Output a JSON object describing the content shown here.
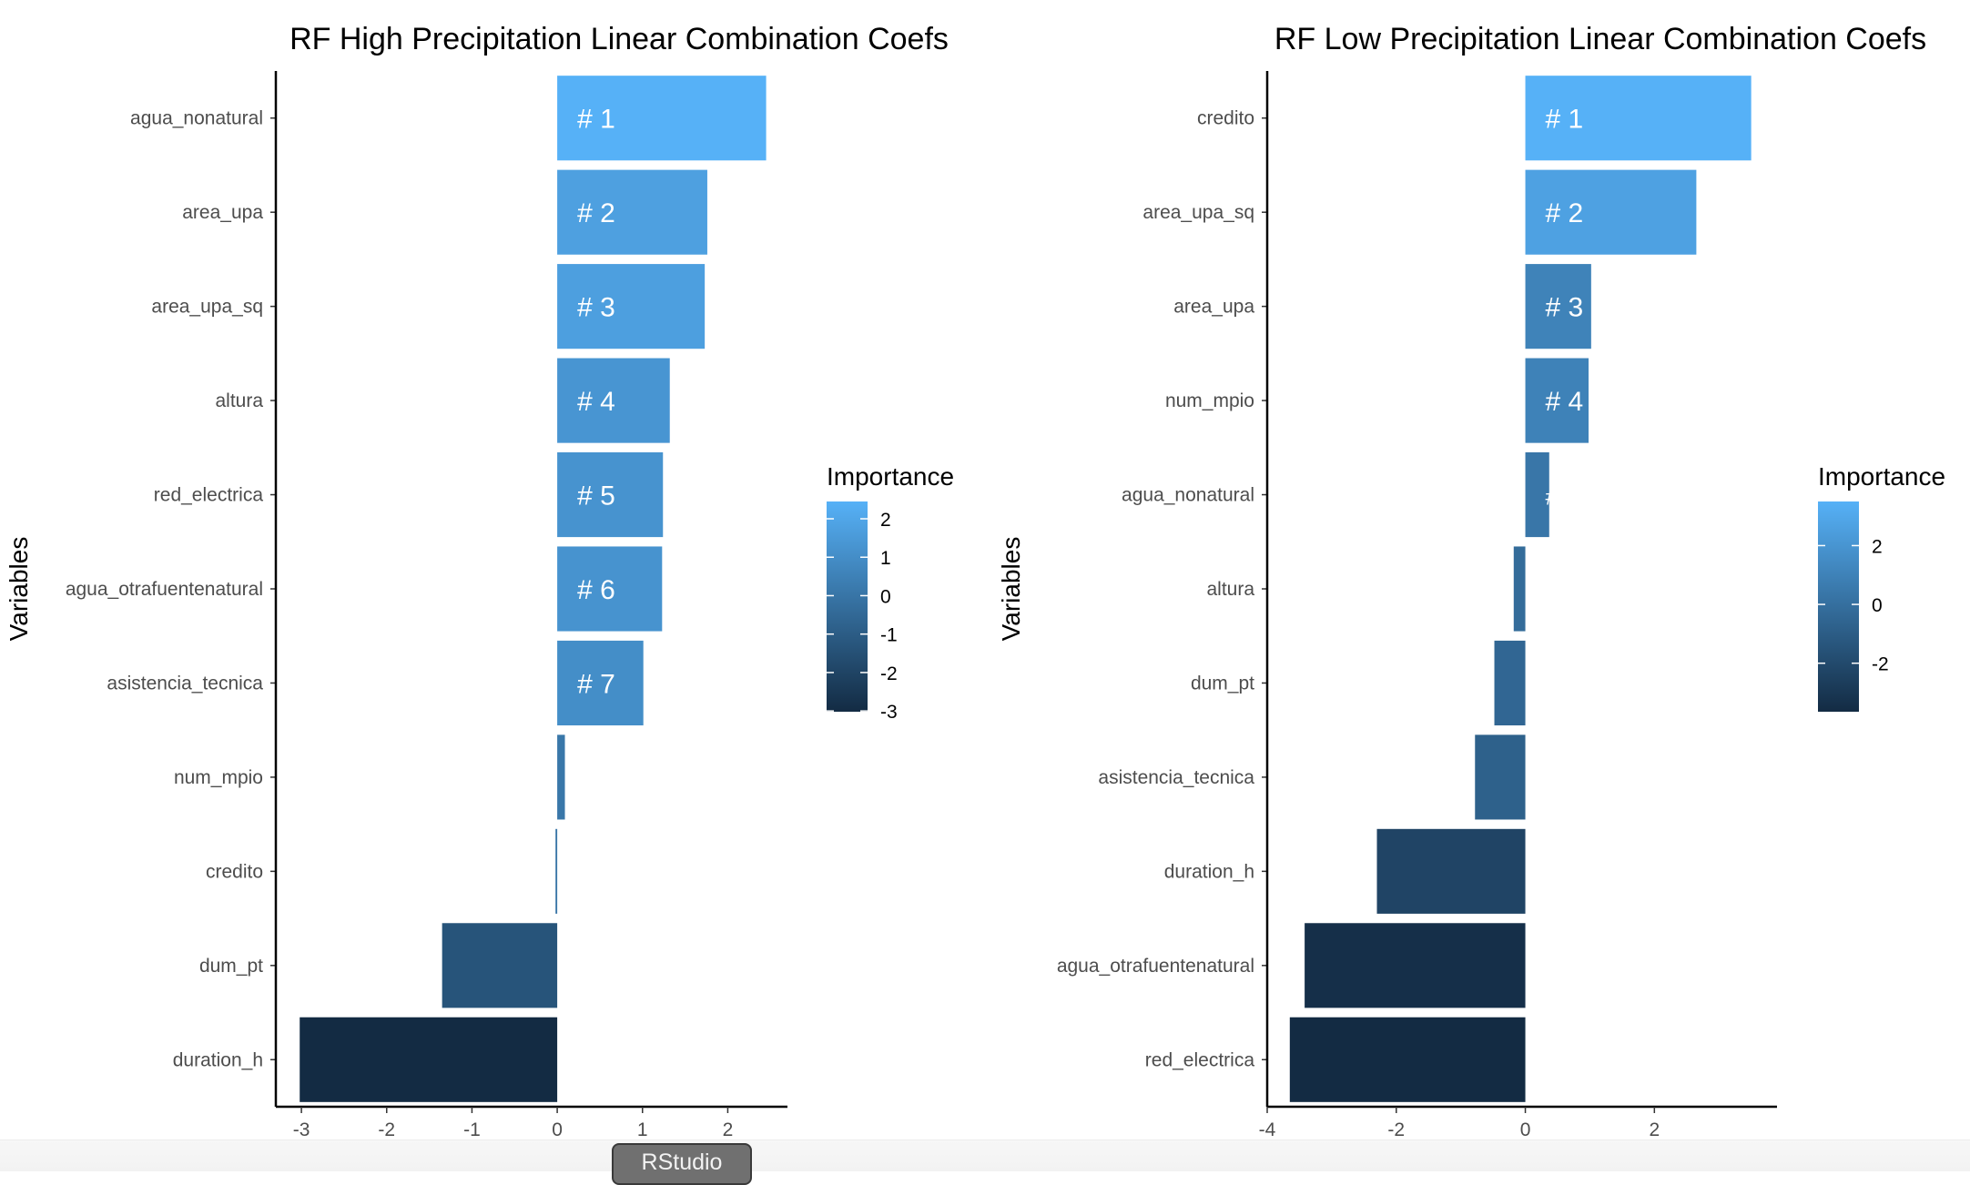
{
  "chart_data": [
    {
      "type": "bar",
      "orientation": "horizontal",
      "title": "RF High Precipitation Linear Combination Coefs",
      "xlabel": "Importance",
      "ylabel": "Variables",
      "xlim": [
        -3.3,
        2.7
      ],
      "xticks": [
        "-3",
        "-2",
        "-1",
        "0",
        "1",
        "2"
      ],
      "categories": [
        "agua_nonatural",
        "area_upa",
        "area_upa_sq",
        "altura",
        "red_electrica",
        "agua_otrafuentenatural",
        "asistencia_tecnica",
        "num_mpio",
        "credito",
        "dum_pt",
        "duration_h"
      ],
      "values": [
        2.45,
        1.76,
        1.73,
        1.32,
        1.24,
        1.23,
        1.01,
        0.09,
        -0.02,
        -1.35,
        -3.02
      ],
      "rank_labels": [
        "# 1",
        "# 2",
        "# 3",
        "# 4",
        "# 5",
        "# 6",
        "# 7",
        "",
        "",
        "",
        ""
      ],
      "legend": {
        "title": "Importance",
        "position": "right",
        "min": -3.02,
        "max": 2.45,
        "ticks": [
          2,
          1,
          0,
          -1,
          -2,
          -3
        ],
        "tick_labels": [
          "2",
          "1",
          "0",
          "-1",
          "-2",
          "-3"
        ]
      },
      "colors": {
        "low": "#132B43",
        "high": "#56B1F7"
      },
      "grid": false
    },
    {
      "type": "bar",
      "orientation": "horizontal",
      "title": "RF Low Precipitation Linear Combination Coefs",
      "xlabel": "Importance",
      "ylabel": "Variables",
      "xlim": [
        -4.0,
        3.9
      ],
      "xticks": [
        "-4",
        "-2",
        "0",
        "2"
      ],
      "categories": [
        "credito",
        "area_upa_sq",
        "area_upa",
        "num_mpio",
        "agua_nonatural",
        "altura",
        "dum_pt",
        "asistencia_tecnica",
        "duration_h",
        "agua_otrafuentenatural",
        "red_electrica"
      ],
      "values": [
        3.5,
        2.65,
        1.02,
        0.98,
        0.37,
        -0.18,
        -0.48,
        -0.78,
        -2.3,
        -3.42,
        -3.65
      ],
      "rank_labels": [
        "# 1",
        "# 2",
        "# 3",
        "# 4",
        "#",
        "",
        "",
        "",
        "",
        "",
        ""
      ],
      "legend": {
        "title": "Importance",
        "position": "right",
        "min": -3.65,
        "max": 3.5,
        "ticks": [
          2,
          0,
          -2
        ],
        "tick_labels": [
          "2",
          "0",
          "-2"
        ]
      },
      "colors": {
        "low": "#132B43",
        "high": "#56B1F7"
      },
      "grid": false
    }
  ],
  "footer": {
    "button_label": "RStudio"
  }
}
